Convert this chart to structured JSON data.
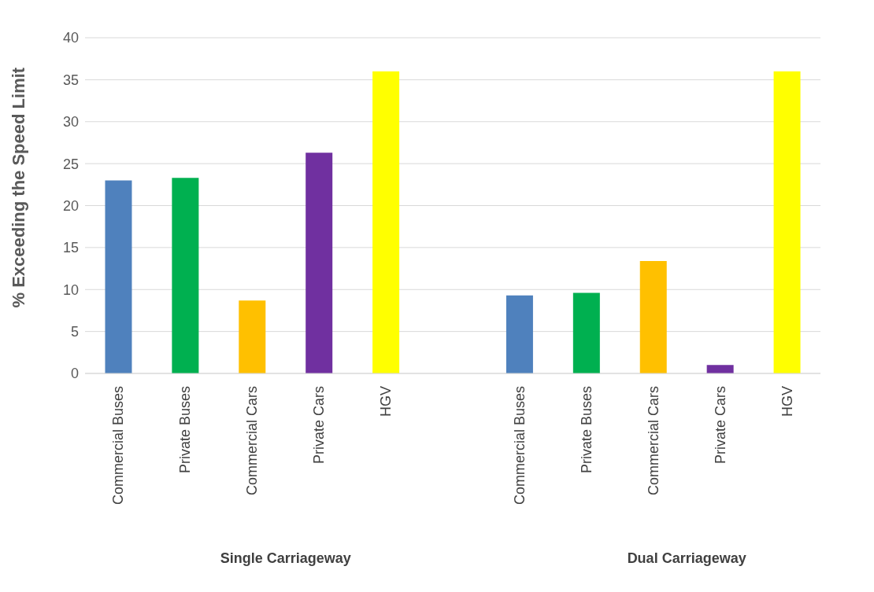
{
  "chart_data": {
    "type": "bar",
    "ylabel": "% Exceeding the Speed Limit",
    "categories": [
      "Commercial Buses",
      "Private Buses",
      "Commercial Cars",
      "Private Cars",
      "HGV",
      null,
      "Commercial Buses",
      "Private Buses",
      "Commercial Cars",
      "Private Cars",
      "HGV"
    ],
    "values": [
      23,
      23.3,
      8.7,
      26.3,
      36,
      null,
      9.3,
      9.6,
      13.4,
      1,
      36
    ],
    "colors": [
      "#4f81bd",
      "#00b050",
      "#ffc000",
      "#7030a0",
      "#ffff00",
      "#ffffff",
      "#4f81bd",
      "#00b050",
      "#ffc000",
      "#7030a0",
      "#ffff00"
    ],
    "ylim": [
      0,
      40
    ],
    "yticks": [
      0,
      5,
      10,
      15,
      20,
      25,
      30,
      35,
      40
    ],
    "grid": "y",
    "annotations": [
      "Single Carriageway",
      "Dual Carriageway"
    ]
  }
}
